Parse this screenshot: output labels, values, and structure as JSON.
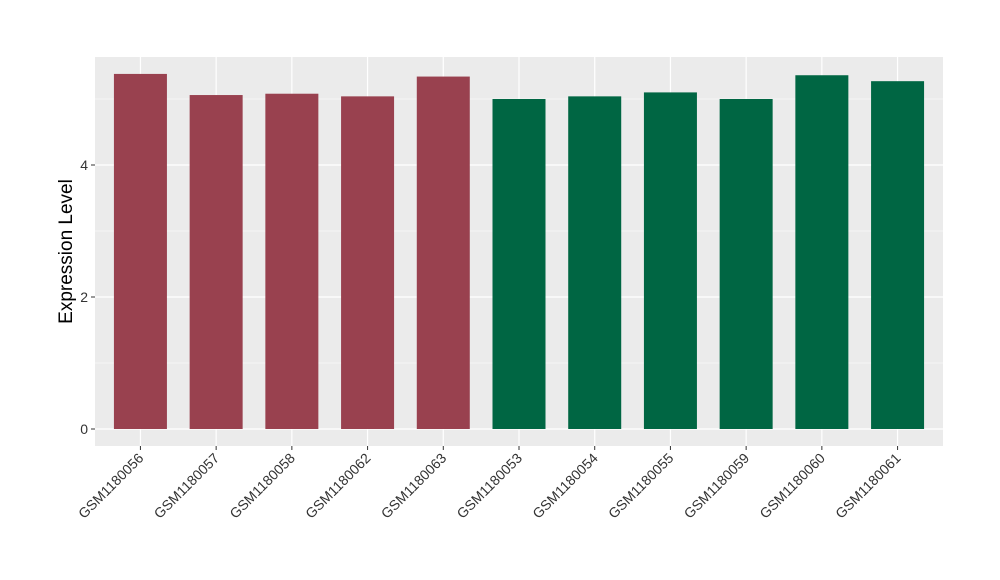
{
  "chart_data": {
    "type": "bar",
    "title": "",
    "xlabel": "",
    "ylabel": "Expression Level",
    "ylim": [
      0,
      5.65
    ],
    "yticks": [
      0,
      2,
      4
    ],
    "grid": true,
    "legend": "none",
    "categories": [
      "GSM1180056",
      "GSM1180057",
      "GSM1180058",
      "GSM1180062",
      "GSM1180063",
      "GSM1180053",
      "GSM1180054",
      "GSM1180055",
      "GSM1180059",
      "GSM1180060",
      "GSM1180061"
    ],
    "values": [
      5.38,
      5.06,
      5.08,
      5.04,
      5.34,
      5.0,
      5.04,
      5.1,
      5.0,
      5.36,
      5.27
    ],
    "bar_colors": [
      "#99414f",
      "#99414f",
      "#99414f",
      "#99414f",
      "#99414f",
      "#006643",
      "#006643",
      "#006643",
      "#006643",
      "#006643",
      "#006643"
    ],
    "panel_background": "#ebebeb",
    "gridline_color": "#ffffff"
  }
}
